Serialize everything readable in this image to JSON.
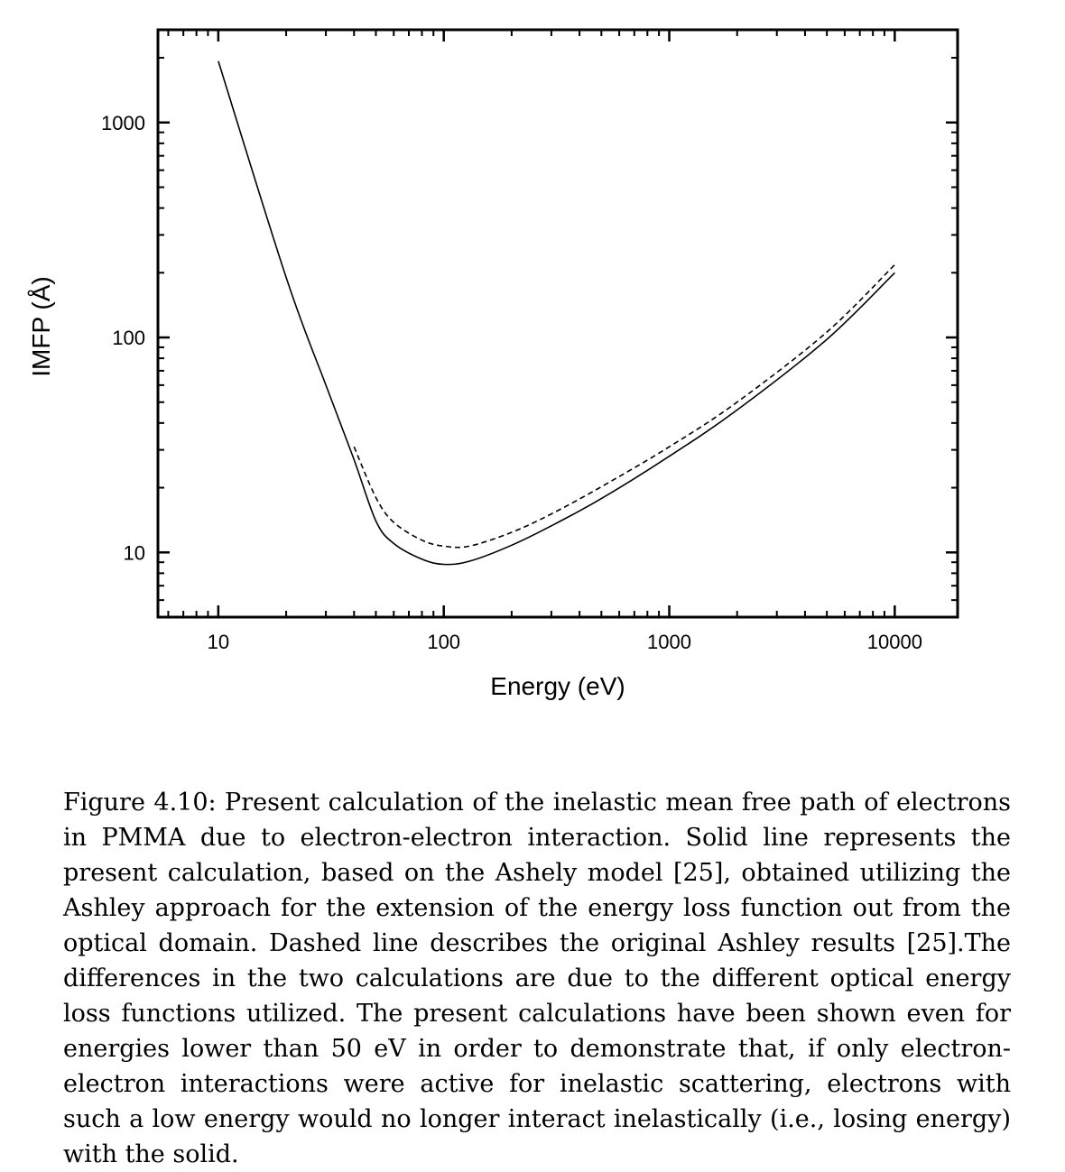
{
  "chart_data": {
    "type": "line",
    "xlabel": "Energy (eV)",
    "ylabel": "IMFP (Å)",
    "xscale": "log",
    "yscale": "log",
    "xlim": [
      5.4,
      19000
    ],
    "ylim": [
      5,
      2700
    ],
    "xticks": [
      10,
      100,
      1000,
      10000
    ],
    "xtick_labels": [
      "10",
      "100",
      "1000",
      "10000"
    ],
    "yticks": [
      10,
      100,
      1000
    ],
    "ytick_labels": [
      "10",
      "100",
      "1000"
    ],
    "grid": false,
    "legend": "none",
    "series": [
      {
        "style": "solid",
        "x": [
          10,
          20,
          30,
          40,
          50,
          60,
          80,
          100,
          130,
          200,
          300,
          500,
          1000,
          2000,
          5000,
          10000
        ],
        "y": [
          1930,
          190,
          60,
          27,
          14,
          11,
          9.3,
          8.8,
          9.1,
          10.8,
          13.3,
          17.8,
          28,
          46,
          98,
          200
        ]
      },
      {
        "style": "dashed",
        "x": [
          40,
          50,
          60,
          80,
          100,
          130,
          200,
          300,
          500,
          1000,
          2000,
          5000,
          10000
        ],
        "y": [
          31,
          18,
          13.8,
          11.4,
          10.7,
          10.7,
          12.4,
          15.1,
          20.2,
          31,
          50,
          106,
          218
        ]
      }
    ]
  },
  "caption": "Figure 4.10: Present calculation of the inelastic mean free path of electrons in PMMA due to electron-electron interaction. Solid line represents the present calculation, based on the Ashely model [25], obtained utilizing the Ashley approach for the extension of the energy loss function out from the optical domain. Dashed line describes the original Ashley results [25].The differences in the two calculations are due to the different optical energy loss functions utilized. The present calculations have been shown even for energies lower than 50 eV in order to demonstrate that, if only electron-electron interactions were active for inelastic scattering, electrons with such a low energy would no longer interact inelastically (i.e., losing energy) with the solid."
}
